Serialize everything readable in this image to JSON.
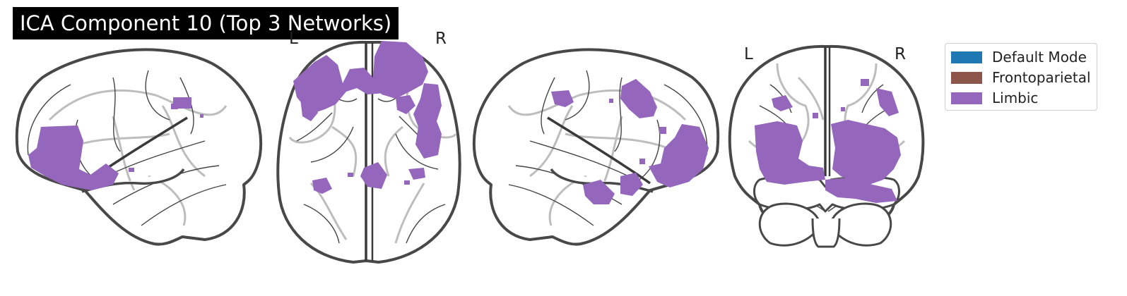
{
  "title": "ICA Component 10 (Top 3 Networks)",
  "view_labels": {
    "axial_left": "L",
    "axial_right": "R",
    "coronal_left": "L",
    "coronal_right": "R"
  },
  "legend": {
    "items": [
      {
        "label": "Default Mode",
        "color": "#1f77b4"
      },
      {
        "label": "Frontoparietal",
        "color": "#8c564b"
      },
      {
        "label": "Limbic",
        "color": "#9467bd"
      }
    ]
  },
  "overlay_color": "#9467bd",
  "views": [
    "left-sagittal",
    "axial",
    "right-sagittal",
    "coronal"
  ]
}
